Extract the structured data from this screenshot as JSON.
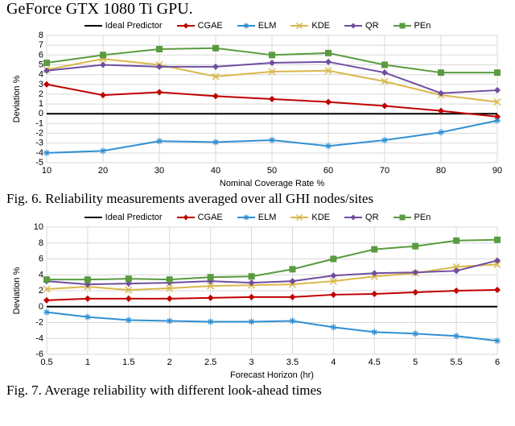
{
  "truncated_header": "GeForce GTX 1080 Ti GPU.",
  "legend_items": [
    {
      "label": "Ideal Predictor",
      "color": "#000000",
      "marker": "hline"
    },
    {
      "label": "CGAE",
      "color": "#c00000",
      "marker": "diamond"
    },
    {
      "label": "ELM",
      "color": "#2f8fd3",
      "marker": "asterisk"
    },
    {
      "label": "KDE",
      "color": "#d9b84a",
      "marker": "cross"
    },
    {
      "label": "QR",
      "color": "#6f4ea0",
      "marker": "diamond"
    },
    {
      "label": "PEn",
      "color": "#5a9b3f",
      "marker": "square"
    }
  ],
  "fig6": {
    "caption": "Fig. 6. Reliability measurements averaged over all GHI nodes/sites",
    "type": "line",
    "xlabel": "Nominal Coverage Rate %",
    "ylabel": "Deviation %",
    "x": [
      10,
      20,
      30,
      40,
      50,
      60,
      70,
      80,
      90
    ],
    "xlim": [
      10,
      90
    ],
    "ylim": [
      -5,
      8
    ],
    "ytick_step": 1,
    "grid_color": "#d9d9d9",
    "background_color": "#ffffff",
    "axis_font_size": 11,
    "line_width": 2,
    "marker_size": 4,
    "series": {
      "Ideal Predictor": [
        0,
        0,
        0,
        0,
        0,
        0,
        0,
        0,
        0
      ],
      "CGAE": [
        3.0,
        1.9,
        2.2,
        1.8,
        1.5,
        1.2,
        0.8,
        0.3,
        -0.3
      ],
      "ELM": [
        -4.0,
        -3.8,
        -2.8,
        -2.9,
        -2.7,
        -3.3,
        -2.7,
        -1.9,
        -0.7
      ],
      "KDE": [
        4.5,
        5.6,
        5.0,
        3.8,
        4.3,
        4.4,
        3.3,
        1.9,
        1.2
      ],
      "QR": [
        4.4,
        5.0,
        4.8,
        4.8,
        5.2,
        5.3,
        4.2,
        2.1,
        2.4
      ],
      "PEn": [
        5.2,
        6.0,
        6.6,
        6.7,
        6.0,
        6.2,
        5.0,
        4.2,
        4.2
      ]
    }
  },
  "fig7": {
    "caption": "Fig. 7. Average reliability with different look-ahead times",
    "type": "line",
    "xlabel": "Forecast Horizon (hr)",
    "ylabel": "Deviation %",
    "x": [
      0.5,
      1,
      1.5,
      2,
      2.5,
      3,
      3.5,
      4,
      4.5,
      5,
      5.5,
      6
    ],
    "xlim": [
      0.5,
      6
    ],
    "ylim": [
      -6,
      10
    ],
    "ytick_step": 2,
    "grid_color": "#d9d9d9",
    "background_color": "#ffffff",
    "axis_font_size": 11,
    "line_width": 2,
    "marker_size": 4,
    "series": {
      "Ideal Predictor": [
        0,
        0,
        0,
        0,
        0,
        0,
        0,
        0,
        0,
        0,
        0,
        0
      ],
      "CGAE": [
        0.8,
        1.0,
        1.0,
        1.0,
        1.1,
        1.2,
        1.2,
        1.5,
        1.6,
        1.8,
        2.0,
        2.1
      ],
      "ELM": [
        -0.7,
        -1.3,
        -1.7,
        -1.8,
        -1.9,
        -1.9,
        -1.8,
        -2.6,
        -3.2,
        -3.4,
        -3.7,
        -4.3
      ],
      "KDE": [
        2.2,
        2.5,
        2.1,
        2.3,
        2.6,
        2.7,
        2.8,
        3.2,
        3.8,
        4.2,
        5.0,
        5.3
      ],
      "QR": [
        3.2,
        2.8,
        2.9,
        3.0,
        3.2,
        3.0,
        3.2,
        3.9,
        4.2,
        4.3,
        4.5,
        5.8
      ],
      "PEn": [
        3.4,
        3.4,
        3.5,
        3.4,
        3.7,
        3.8,
        4.7,
        6.0,
        7.2,
        7.6,
        8.3,
        8.4
      ]
    }
  }
}
